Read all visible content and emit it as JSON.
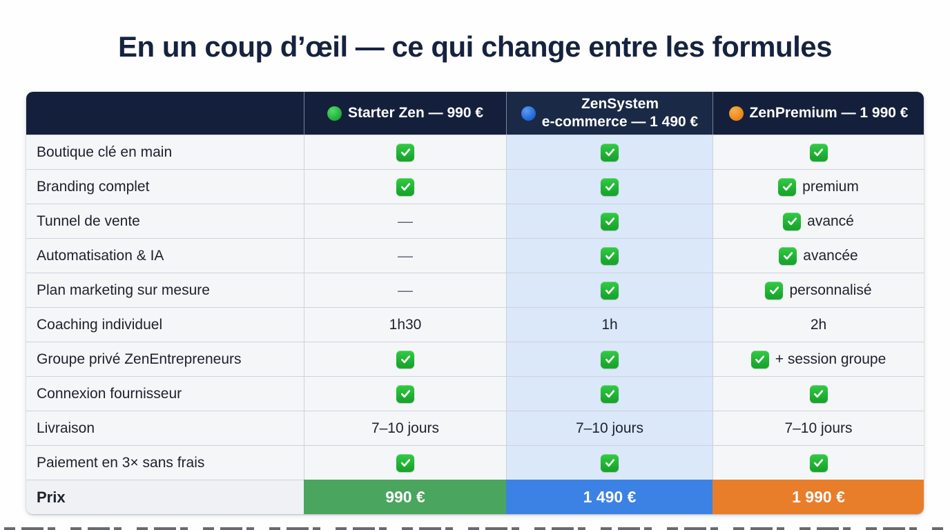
{
  "title": "En un coup d’œil — ce qui change entre les formules",
  "table": {
    "header": {
      "plans": [
        {
          "dot": "green-dot-icon",
          "title": "Starter Zen — 990 €"
        },
        {
          "dot": "blue-dot-icon",
          "title": "ZenSystem\ne-commerce — 1 490 €"
        },
        {
          "dot": "orange-dot-icon",
          "title": "ZenPremium — 1 990 €"
        }
      ]
    },
    "rows": [
      {
        "feature": "Boutique clé en main",
        "values": [
          {
            "check": true
          },
          {
            "check": true
          },
          {
            "check": true
          }
        ]
      },
      {
        "feature": "Branding complet",
        "values": [
          {
            "check": true
          },
          {
            "check": true
          },
          {
            "check": true,
            "text": "premium"
          }
        ]
      },
      {
        "feature": "Tunnel de vente",
        "values": [
          {
            "dash": true
          },
          {
            "check": true
          },
          {
            "check": true,
            "text": "avancé"
          }
        ]
      },
      {
        "feature": "Automatisation & IA",
        "values": [
          {
            "dash": true
          },
          {
            "check": true
          },
          {
            "check": true,
            "text": "avancée"
          }
        ]
      },
      {
        "feature": "Plan marketing sur mesure",
        "values": [
          {
            "dash": true
          },
          {
            "check": true
          },
          {
            "check": true,
            "text": "personnalisé"
          }
        ]
      },
      {
        "feature": "Coaching individuel",
        "values": [
          {
            "text": "1h30"
          },
          {
            "text": "1h"
          },
          {
            "text": "2h"
          }
        ]
      },
      {
        "feature": "Groupe privé ZenEntrepreneurs",
        "values": [
          {
            "check": true
          },
          {
            "check": true
          },
          {
            "check": true,
            "text": "+ session groupe"
          }
        ]
      },
      {
        "feature": "Connexion fournisseur",
        "values": [
          {
            "check": true
          },
          {
            "check": true
          },
          {
            "check": true
          }
        ]
      },
      {
        "feature": "Livraison",
        "values": [
          {
            "text": "7–10 jours"
          },
          {
            "text": "7–10 jours"
          },
          {
            "text": "7–10 jours"
          }
        ]
      },
      {
        "feature": "Paiement en 3× sans frais",
        "values": [
          {
            "check": true
          },
          {
            "check": true
          },
          {
            "check": true
          }
        ]
      }
    ],
    "price_row": {
      "feature": "Prix",
      "values": [
        "990 €",
        "1 490 €",
        "1 990 €"
      ]
    }
  },
  "icons": {
    "check": "check-icon",
    "dash": "dash-icon"
  },
  "colors": {
    "title_text": "#16233f",
    "header_bg": "#14203b",
    "header_highlight_bg": "#1a2946",
    "row_bg": "#f5f6f8",
    "highlight_column_bg": "#dbe8f9",
    "check_green": "#1fb334",
    "price_green": "#4aa55e",
    "price_blue": "#3b82e4",
    "price_orange": "#e87d2a"
  }
}
